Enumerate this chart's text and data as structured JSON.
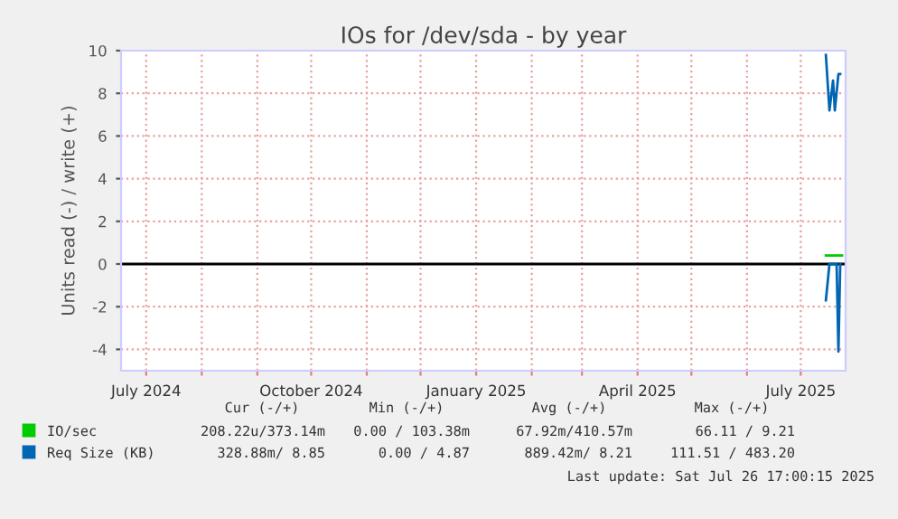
{
  "chart_data": {
    "type": "line",
    "title": "IOs for /dev/sda - by year",
    "ylabel": "Units read (-) / write (+)",
    "xlim": [
      "2024-06-17",
      "2025-07-26"
    ],
    "xticks": [
      {
        "value": "2024-07-01",
        "label": "July 2024"
      },
      {
        "value": "2024-08-01",
        "label": null
      },
      {
        "value": "2024-09-01",
        "label": null
      },
      {
        "value": "2024-10-01",
        "label": "October 2024"
      },
      {
        "value": "2024-11-01",
        "label": null
      },
      {
        "value": "2024-12-01",
        "label": null
      },
      {
        "value": "2025-01-01",
        "label": "January 2025"
      },
      {
        "value": "2025-02-01",
        "label": null
      },
      {
        "value": "2025-03-01",
        "label": null
      },
      {
        "value": "2025-04-01",
        "label": "April 2025"
      },
      {
        "value": "2025-05-01",
        "label": null
      },
      {
        "value": "2025-06-01",
        "label": null
      },
      {
        "value": "2025-07-01",
        "label": "July 2025"
      }
    ],
    "ylim": [
      -5,
      10
    ],
    "yticks": [
      -4,
      -2,
      0,
      2,
      4,
      6,
      8,
      10
    ],
    "grid": true,
    "legend": "bottom",
    "series": [
      {
        "name": "IO/sec",
        "color": "#00cc00",
        "x": [
          "2025-07-15",
          "2025-07-18",
          "2025-07-21",
          "2025-07-24"
        ],
        "values": [
          0.4,
          0.4,
          0.4,
          0.4
        ]
      },
      {
        "name": "Req Size (KB)",
        "color": "#0066b3",
        "x": [
          "2025-07-15",
          "2025-07-17",
          "2025-07-19",
          "2025-07-20",
          "2025-07-22",
          "2025-07-23"
        ],
        "values": [
          9.8,
          7.2,
          8.6,
          7.2,
          8.9,
          8.9
        ]
      },
      {
        "color": "#0066b3",
        "x": [
          "2025-07-15",
          "2025-07-17",
          "2025-07-21",
          "2025-07-22",
          "2025-07-23"
        ],
        "values": [
          -1.7,
          0,
          0,
          -4.1,
          0
        ]
      }
    ],
    "annotations": [
      "Cur (-/+)",
      "Min (-/+)",
      "Avg (-/+)",
      "Max (-/+)",
      "208.22u/373.14m",
      "0.00 / 103.38m",
      "67.92m/410.57m",
      "66.11 / 9.21",
      "328.88m/ 8.85",
      "0.00 / 4.87",
      "889.42m/ 8.21",
      "111.51 / 483.20",
      "Last update: Sat Jul 26 17:00:15 2025"
    ]
  }
}
